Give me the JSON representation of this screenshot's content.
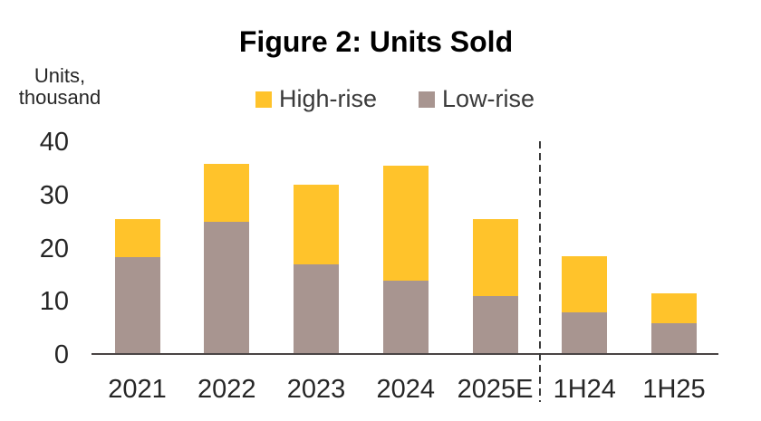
{
  "chart_data": {
    "type": "bar",
    "stacked": true,
    "title": "Figure 2: Units Sold",
    "ylabel": "Units, thousand",
    "xlabel": "",
    "categories": [
      "2021",
      "2022",
      "2023",
      "2024",
      "2025E",
      "1H24",
      "1H25"
    ],
    "series": [
      {
        "name": "Low-rise",
        "color": "#A89590",
        "values": [
          18.3,
          25,
          17,
          14,
          11,
          8,
          6
        ]
      },
      {
        "name": "High-rise",
        "color": "#FFC32B",
        "values": [
          7.2,
          11,
          15,
          21.5,
          14.5,
          10.5,
          5.5
        ]
      }
    ],
    "totals": [
      25.5,
      36,
      32,
      35.5,
      25.5,
      18.5,
      11.5
    ],
    "ylim": [
      0,
      40
    ],
    "yticks": [
      0,
      10,
      20,
      30,
      40
    ],
    "grid": false,
    "legend_position": "top",
    "separator": {
      "after_category": "2025E",
      "style": "dashed"
    }
  },
  "axis": {
    "unit_label": "Units,\nthousand"
  },
  "legend": {
    "items": [
      {
        "label": "High-rise",
        "color": "#FFC32B"
      },
      {
        "label": "Low-rise",
        "color": "#A89590"
      }
    ]
  },
  "colors": {
    "high_rise": "#FFC32B",
    "low_rise": "#A89590",
    "axis_line": "#4A4545",
    "separator_line": "#3A3A3A",
    "text": "#262626",
    "title_text": "#000000",
    "background": "#FFFFFF"
  }
}
